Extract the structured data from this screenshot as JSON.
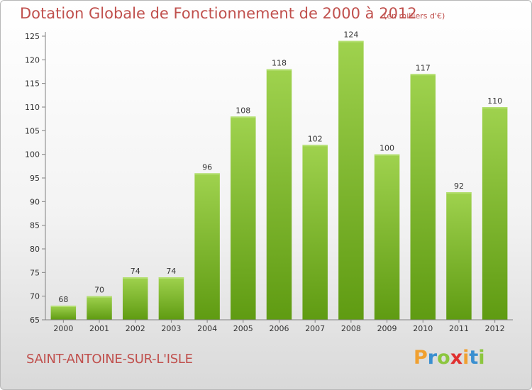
{
  "header": {
    "title": "Dotation Globale de Fonctionnement de 2000 à 2012",
    "subtitle": "(en milliers d'€)"
  },
  "footer": {
    "commune": "SAINT-ANTOINE-SUR-L'ISLE",
    "logo_letters": [
      "P",
      "r",
      "o",
      "x",
      "i",
      "t",
      "i"
    ],
    "logo_colors": [
      "#f0a030",
      "#3a8fd0",
      "#8cc63f",
      "#e03030",
      "#f0a030",
      "#3a8fd0",
      "#8cc63f"
    ]
  },
  "chart_data": {
    "type": "bar",
    "title": "Dotation Globale de Fonctionnement de 2000 à 2012",
    "subtitle": "(en milliers d'€)",
    "categories": [
      "2000",
      "2001",
      "2002",
      "2003",
      "2004",
      "2005",
      "2006",
      "2007",
      "2008",
      "2009",
      "2010",
      "2011",
      "2012"
    ],
    "values": [
      68,
      70,
      74,
      74,
      96,
      108,
      118,
      102,
      124,
      100,
      117,
      92,
      110
    ],
    "xlabel": "",
    "ylabel": "",
    "ylim": [
      65,
      125
    ],
    "yticks": [
      65,
      70,
      75,
      80,
      85,
      90,
      95,
      100,
      105,
      110,
      115,
      120,
      125
    ],
    "grid": false,
    "legend": "none",
    "colors": {
      "bar_top": "#9fd24e",
      "bar_bottom": "#5f9b12",
      "axis": "#808080",
      "label": "#333333",
      "title": "#c0504d"
    }
  }
}
